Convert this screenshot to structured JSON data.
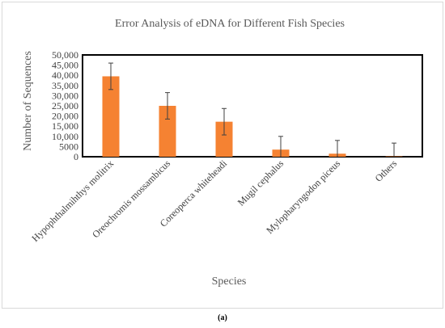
{
  "caption": "(a)",
  "chart_data": {
    "type": "bar",
    "title": "Error Analysis of eDNA for Different Fish Species",
    "xlabel": "Species",
    "ylabel": "Number of Sequences",
    "categories": [
      "Hypophthalmihthys molitrix",
      "Oreochromis mossambicus",
      "Coreoperca whiteheadi",
      "Mugil cephalus",
      "Mylopharyngodon piceus",
      "Others"
    ],
    "values": [
      39500,
      25000,
      17200,
      3500,
      1500,
      200
    ],
    "error": [
      6500,
      6500,
      6500,
      6500,
      6500,
      6500
    ],
    "ylim": [
      0,
      50000
    ],
    "yticks": [
      0,
      5000,
      10000,
      15000,
      20000,
      25000,
      30000,
      35000,
      40000,
      45000,
      50000
    ],
    "ytick_labels": [
      "0",
      "5000",
      "10,000",
      "15,000",
      "20,000",
      "25,000",
      "30,000",
      "35,000",
      "40,000",
      "45,000",
      "50,000"
    ],
    "grid": false,
    "colors": {
      "bar": "#F58232",
      "error_bar": "#404040",
      "axis": "#000000",
      "title_text": "#595959",
      "label_text": "#595959",
      "tick_text": "#404040"
    }
  }
}
